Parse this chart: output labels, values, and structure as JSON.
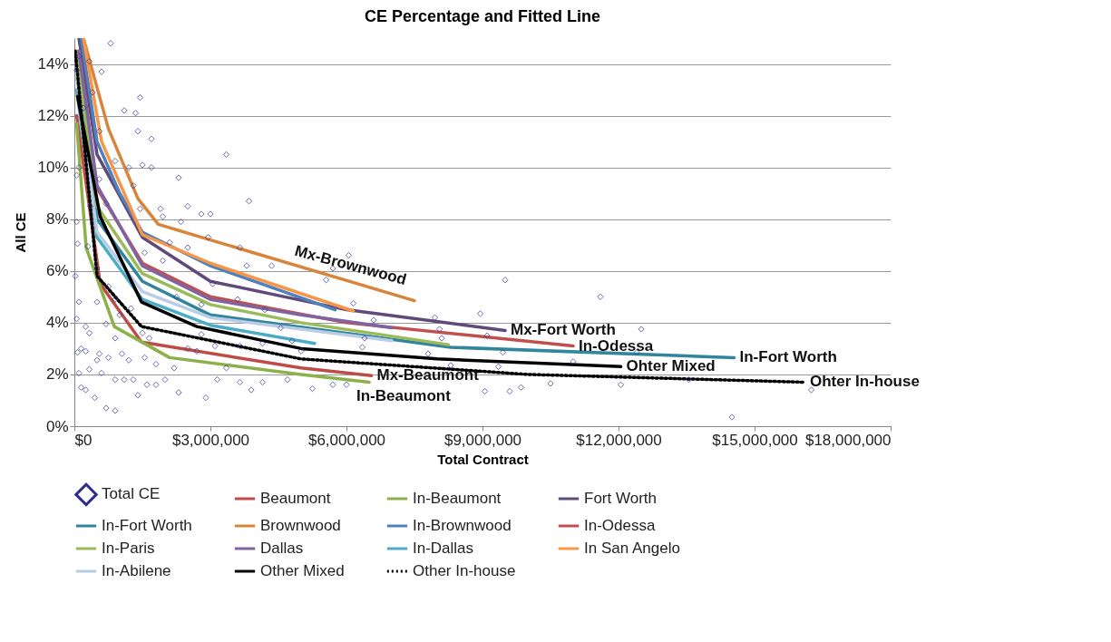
{
  "chart_data": {
    "type": "line",
    "title": "CE Percentage and Fitted Line",
    "xlabel": "Total Contract",
    "ylabel": "All CE",
    "xlim": [
      0,
      18000000
    ],
    "xticks": [
      {
        "value": 0,
        "label": "$0"
      },
      {
        "value": 3000000,
        "label": "$3,000,000"
      },
      {
        "value": 6000000,
        "label": "$6,000,000"
      },
      {
        "value": 9000000,
        "label": "$9,000,000"
      },
      {
        "value": 12000000,
        "label": "$12,000,000"
      },
      {
        "value": 15000000,
        "label": "$15,000,000"
      },
      {
        "value": 18000000,
        "label": "$18,000,000"
      }
    ],
    "ylim": [
      0,
      15
    ],
    "yticks": [
      {
        "value": 0,
        "label": "0%"
      },
      {
        "value": 2,
        "label": "2%"
      },
      {
        "value": 4,
        "label": "4%"
      },
      {
        "value": 6,
        "label": "6%"
      },
      {
        "value": 8,
        "label": "8%"
      },
      {
        "value": 10,
        "label": "10%"
      },
      {
        "value": 12,
        "label": "12%"
      },
      {
        "value": 14,
        "label": "14%"
      }
    ],
    "grid": "y",
    "legend": "bottom",
    "series": [
      {
        "name": "Total CE",
        "type": "scatter",
        "marker": "diamond",
        "color": "#2e2e8c",
        "x": [
          800000,
          600000,
          1450000,
          1100000,
          1350000,
          1400000,
          1700000,
          3350000,
          1500000,
          1700000,
          2300000,
          1200000,
          1300000,
          3850000,
          1900000,
          2500000,
          2800000,
          3000000,
          2350000,
          1950000,
          1450000,
          2950000,
          3650000,
          3800000,
          4350000,
          2500000,
          2100000,
          1550000,
          1950000,
          3050000,
          3600000,
          2800000,
          2250000,
          4200000,
          4550000,
          4800000,
          4150000,
          3650000,
          3100000,
          2800000,
          2500000,
          2200000,
          2000000,
          2300000,
          1800000,
          1600000,
          1400000,
          1300000,
          1100000,
          900000,
          600000,
          450000,
          700000,
          900000,
          150000,
          100000,
          70000,
          250000,
          500000,
          50000,
          250000,
          100000,
          20000,
          70000,
          50000,
          50000,
          100000,
          50000,
          100000,
          200000,
          330000,
          400000,
          550000,
          550000,
          700000,
          350000,
          900000,
          300000,
          500000,
          750000,
          900000,
          1000000,
          1250000,
          1500000,
          1650000,
          500000,
          700000,
          330000,
          900000,
          1050000,
          1550000,
          1800000,
          1200000,
          330000,
          150000,
          250000,
          550000,
          750000,
          2700000,
          3150000,
          2900000,
          3650000,
          3900000,
          4150000,
          4700000,
          5000000,
          3350000,
          6050000,
          5700000,
          5550000,
          6150000,
          9500000,
          11600000,
          7950000,
          8950000,
          6600000,
          8050000,
          9100000,
          6400000,
          8100000,
          6350000,
          9450000,
          7800000,
          8300000,
          9350000,
          11000000,
          5250000,
          6000000,
          5700000,
          9600000,
          9850000,
          10500000,
          9050000,
          12500000,
          12400000,
          12050000,
          14500000,
          16250000,
          13550000
        ],
        "values": [
          14.8,
          13.7,
          12.7,
          12.2,
          12.1,
          11.4,
          11.1,
          10.5,
          10.1,
          10.0,
          9.6,
          10.0,
          9.3,
          8.7,
          8.4,
          8.5,
          8.2,
          8.2,
          7.9,
          8.1,
          8.4,
          7.3,
          6.9,
          6.2,
          6.2,
          6.9,
          7.1,
          6.7,
          6.4,
          5.5,
          4.9,
          4.7,
          5.0,
          4.5,
          3.8,
          3.3,
          3.2,
          3.1,
          3.1,
          3.55,
          3.0,
          2.25,
          1.8,
          1.3,
          1.6,
          1.6,
          1.2,
          1.8,
          1.8,
          1.8,
          2.05,
          1.1,
          0.7,
          0.6,
          1.5,
          2.05,
          2.85,
          2.9,
          2.55,
          4.15,
          3.85,
          4.8,
          5.8,
          7.05,
          7.9,
          9.7,
          10.0,
          13.75,
          14.3,
          12.3,
          14.1,
          12.9,
          11.4,
          9.55,
          8.6,
          8.5,
          10.25,
          6.95,
          6.1,
          5.4,
          4.9,
          4.3,
          4.55,
          3.6,
          3.4,
          4.8,
          3.95,
          3.6,
          3.4,
          2.8,
          2.65,
          2.4,
          2.55,
          2.2,
          3.0,
          1.4,
          2.8,
          2.65,
          2.9,
          1.8,
          1.1,
          1.7,
          1.4,
          1.7,
          1.8,
          2.9,
          2.25,
          6.6,
          6.1,
          5.65,
          4.75,
          5.65,
          5.0,
          4.2,
          4.35,
          4.1,
          3.75,
          3.5,
          3.4,
          3.4,
          3.05,
          2.85,
          2.8,
          2.35,
          2.3,
          2.5,
          1.45,
          1.6,
          1.6,
          1.35,
          1.5,
          1.65,
          1.35,
          3.75,
          2.85,
          1.6,
          0.35,
          1.4,
          1.8
        ]
      },
      {
        "name": "Beaumont",
        "color": "#be4b48",
        "x": [
          50000,
          570000,
          1480000,
          5000000,
          6550000
        ],
        "values": [
          12.0,
          5.5,
          3.25,
          2.25,
          1.95
        ]
      },
      {
        "name": "In-Beaumont",
        "color": "#8cb04a",
        "x": [
          50000,
          260000,
          880000,
          2100000,
          5000000,
          6500000
        ],
        "values": [
          11.7,
          6.9,
          3.85,
          2.65,
          2.0,
          1.7
        ]
      },
      {
        "name": "Fort Worth",
        "color": "#604a7b",
        "x": [
          100000,
          500000,
          1500000,
          3000000,
          6000000,
          9500000
        ],
        "values": [
          15.0,
          10.5,
          7.3,
          5.6,
          4.5,
          3.7
        ]
      },
      {
        "name": "In-Fort Worth",
        "color": "#31859c",
        "x": [
          50000,
          500000,
          1500000,
          3000000,
          8300000,
          14550000
        ],
        "values": [
          14.0,
          8.0,
          5.6,
          4.3,
          3.05,
          2.65
        ]
      },
      {
        "name": "Brownwood",
        "color": "#d9843b",
        "x": [
          200000,
          750000,
          1400000,
          1850000,
          3000000,
          7500000
        ],
        "values": [
          15.0,
          11.5,
          8.8,
          7.8,
          7.2,
          4.85
        ]
      },
      {
        "name": "In-Brownwood",
        "color": "#4f81bd",
        "x": [
          150000,
          500000,
          1000000,
          1500000,
          3000000,
          5750000
        ],
        "values": [
          15.0,
          11.0,
          9.0,
          7.5,
          6.2,
          4.5
        ]
      },
      {
        "name": "In-Odessa",
        "color": "#c0504d",
        "x": [
          100000,
          500000,
          1500000,
          3000000,
          6000000,
          11000000
        ],
        "values": [
          14.5,
          9.2,
          6.3,
          5.0,
          4.0,
          3.1
        ]
      },
      {
        "name": "In-Paris",
        "color": "#9bbb59",
        "x": [
          50000,
          500000,
          1500000,
          3000000,
          5000000,
          8250000
        ],
        "values": [
          14.5,
          8.5,
          5.9,
          4.7,
          4.0,
          3.15
        ]
      },
      {
        "name": "Dallas",
        "color": "#8064a2",
        "x": [
          100000,
          500000,
          1500000,
          3000000,
          5000000,
          7000000
        ],
        "values": [
          14.5,
          9.3,
          6.2,
          4.9,
          4.3,
          3.8
        ]
      },
      {
        "name": "In-Dallas",
        "color": "#4bacc6",
        "x": [
          50000,
          500000,
          1500000,
          3000000,
          5300000
        ],
        "values": [
          13.0,
          7.3,
          4.9,
          3.9,
          3.2
        ]
      },
      {
        "name": "In San Angelo",
        "color": "#f79646",
        "x": [
          200000,
          600000,
          1500000,
          3000000,
          6150000
        ],
        "values": [
          15.0,
          11.0,
          7.4,
          6.3,
          4.45
        ]
      },
      {
        "name": "In-Abilene",
        "color": "#b9cde5",
        "x": [
          50000,
          500000,
          1500000,
          3000000,
          7000000
        ],
        "values": [
          13.5,
          7.5,
          5.2,
          4.2,
          3.3
        ]
      },
      {
        "name": "Other Mixed",
        "color": "#000000",
        "x": [
          70000,
          570000,
          1480000,
          2700000,
          5000000,
          8000000,
          12050000
        ],
        "values": [
          12.75,
          8.1,
          4.8,
          3.85,
          3.0,
          2.6,
          2.3
        ]
      },
      {
        "name": "Other In-house",
        "color": "#000000",
        "line_style": "dotted",
        "x": [
          20000,
          500000,
          1480000,
          5000000,
          10000000,
          16100000
        ],
        "values": [
          14.5,
          5.8,
          3.85,
          2.6,
          2.0,
          1.7
        ]
      }
    ],
    "annotations": [
      {
        "text": "Mx-Brownwood",
        "x": 6000000,
        "y": 5.63
      },
      {
        "text": "Mx-Fort Worth",
        "x": 9500000,
        "y": 3.7
      },
      {
        "text": "In-Odessa",
        "x": 11000000,
        "y": 3.1
      },
      {
        "text": "In-Fort Worth",
        "x": 14550000,
        "y": 2.65
      },
      {
        "text": "Ohter Mixed",
        "x": 12050000,
        "y": 2.3
      },
      {
        "text": "Ohter In-house",
        "x": 16100000,
        "y": 1.7
      },
      {
        "text": "Mx-Beaumont",
        "x": 6550000,
        "y": 1.95
      },
      {
        "text": "In-Beaumont",
        "x": 6500000,
        "y": 1.7
      }
    ]
  }
}
